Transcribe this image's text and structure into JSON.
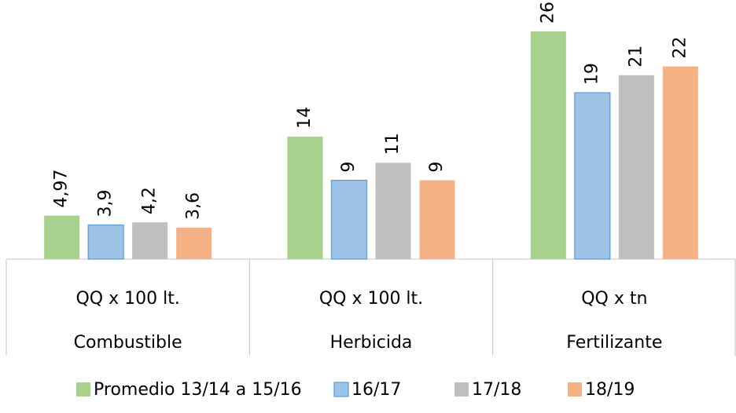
{
  "chart_data": {
    "type": "bar",
    "categories": [
      "Combustible",
      "Herbicida",
      "Fertilizante"
    ],
    "units": [
      "QQ x 100 lt.",
      "QQ x 100 lt.",
      "QQ x tn"
    ],
    "series": [
      {
        "name": "Promedio 13/14 a 15/16",
        "color": "#a9d18e",
        "values": [
          4.97,
          14,
          26
        ],
        "value_labels": [
          "4,97",
          "14",
          "26"
        ]
      },
      {
        "name": "16/17",
        "color": "#9dc3e6",
        "values": [
          3.9,
          9,
          19
        ],
        "value_labels": [
          "3,9",
          "9",
          "19"
        ]
      },
      {
        "name": "17/18",
        "color": "#bfbfbf",
        "values": [
          4.2,
          11,
          21
        ],
        "value_labels": [
          "4,2",
          "11",
          "21"
        ]
      },
      {
        "name": "18/19",
        "color": "#f4b183",
        "values": [
          3.6,
          9,
          22
        ],
        "value_labels": [
          "3,6",
          "9",
          "22"
        ]
      }
    ],
    "legend": "bottom"
  }
}
